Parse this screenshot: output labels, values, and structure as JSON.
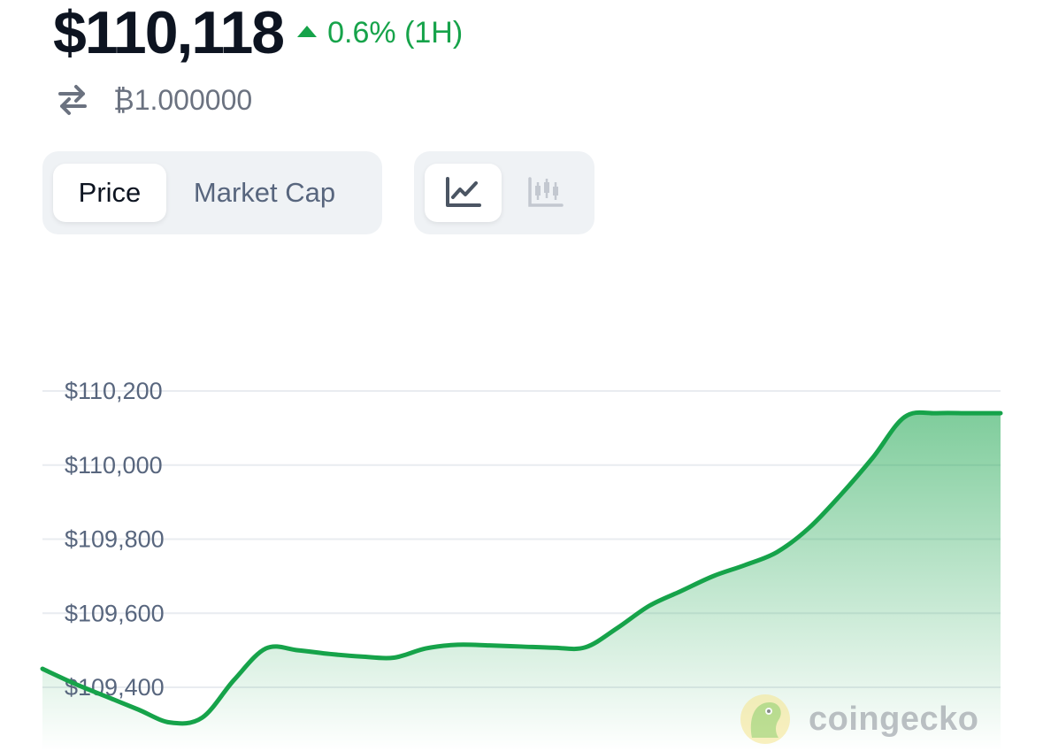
{
  "header": {
    "price": "$110,118",
    "change_text": "0.6% (1H)",
    "change_direction": "up",
    "btc_value": "₿1.000000"
  },
  "metric_toggle": {
    "items": [
      {
        "label": "Price",
        "active": true
      },
      {
        "label": "Market Cap",
        "active": false
      }
    ]
  },
  "view_toggle": {
    "items": [
      {
        "icon": "line-chart-icon",
        "active": true
      },
      {
        "icon": "candlestick-chart-icon",
        "active": false
      }
    ]
  },
  "watermark": {
    "text": "coingecko",
    "icon": "coingecko-logo-icon"
  },
  "colors": {
    "up": "#16a34a",
    "price_text": "#0d1421",
    "muted": "#58667e",
    "line": "#16a34a",
    "grid": "#e9ecf0"
  },
  "chart_data": {
    "type": "area",
    "title": "",
    "xlabel": "",
    "ylabel": "",
    "ylim": [
      109320,
      110200
    ],
    "yticks": [
      110200,
      110000,
      109800,
      109600,
      109400
    ],
    "ytick_labels": [
      "$110,200",
      "$110,000",
      "$109,800",
      "$109,600",
      "$109,400"
    ],
    "grid": true,
    "series": [
      {
        "x": [
          0,
          2,
          4,
          6,
          8,
          10,
          12,
          14,
          16,
          18,
          20,
          22,
          24,
          26,
          28,
          30,
          32,
          34,
          36,
          38,
          40,
          42,
          44,
          46,
          48,
          50,
          52,
          54,
          56,
          58,
          60
        ],
        "values": [
          109450,
          109410,
          109375,
          109340,
          109305,
          109318,
          109420,
          109505,
          109500,
          109490,
          109483,
          109480,
          109505,
          109515,
          109513,
          109510,
          109507,
          109508,
          109560,
          109620,
          109660,
          109700,
          109730,
          109765,
          109830,
          109920,
          110020,
          110130,
          110140,
          110140,
          110140
        ]
      }
    ]
  }
}
